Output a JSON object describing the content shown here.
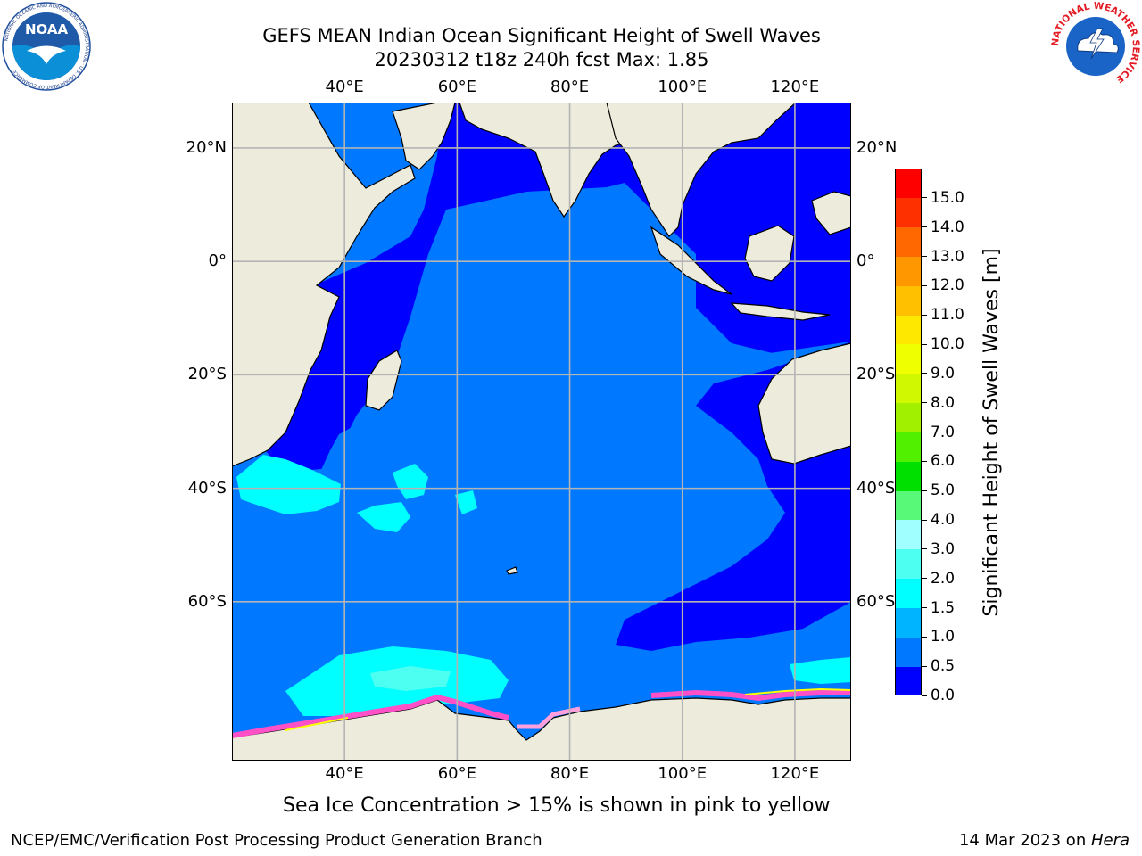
{
  "header": {
    "title_line1": "GEFS MEAN Indian Ocean Significant Height of Swell Waves",
    "title_line2": "20230312 t18z 240h fcst   Max: 1.85"
  },
  "map": {
    "lon_labels": [
      "40°E",
      "60°E",
      "80°E",
      "100°E",
      "120°E"
    ],
    "lat_labels": [
      "20°N",
      "0°",
      "20°S",
      "40°S",
      "60°S"
    ],
    "lon_values": [
      40,
      60,
      80,
      100,
      120
    ],
    "lat_values": [
      20,
      0,
      -20,
      -40,
      -60
    ],
    "lon_range": [
      20,
      130
    ],
    "lat_range": [
      28,
      -88
    ],
    "gridlines": true,
    "land_color": "#ecebdc",
    "ocean_colors": {
      "deep_blue": "#0000ff",
      "mid_blue": "#0078ff",
      "cyan": "#00ffff",
      "light_cyan": "#4cffff"
    },
    "sea_ice_colors": [
      "#ff50c8",
      "#ffa0dc",
      "#ffff00"
    ]
  },
  "colorbar": {
    "label": "Significant Height of Swell Waves [m]",
    "ticks": [
      "0.0",
      "0.5",
      "1.0",
      "1.5",
      "2.0",
      "3.0",
      "4.0",
      "5.0",
      "6.0",
      "7.0",
      "8.0",
      "9.0",
      "10.0",
      "11.0",
      "12.0",
      "13.0",
      "14.0",
      "15.0"
    ],
    "colors": [
      "#0000ff",
      "#0078ff",
      "#00b4ff",
      "#00ffff",
      "#4cfff0",
      "#a0ffff",
      "#58f878",
      "#00e000",
      "#50f000",
      "#a0f000",
      "#d0f800",
      "#f0ff00",
      "#ffe800",
      "#ffc000",
      "#ff9800",
      "#ff6800",
      "#ff3000",
      "#ff0000"
    ]
  },
  "caption": "Sea Ice Concentration > 15% is shown in pink to yellow",
  "footer": {
    "left": "NCEP/EMC/Verification Post Processing Product Generation Branch",
    "date": "14 Mar 2023 on ",
    "machine": "Hera"
  },
  "logos": {
    "noaa_text": "NOAA",
    "noaa_ring": "NATIONAL OCEANIC AND ATMOSPHERIC ADMINISTRATION · U.S. DEPARTMENT OF COMMERCE",
    "nws_ring": "NATIONAL WEATHER SERVICE"
  }
}
